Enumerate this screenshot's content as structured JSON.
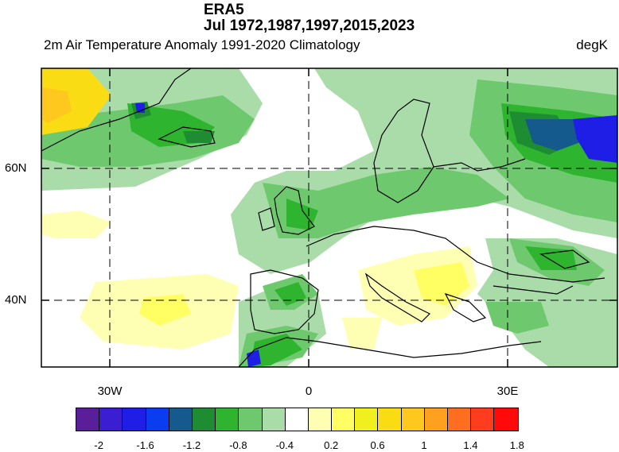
{
  "header": {
    "title": "ERA5",
    "subtitle_dates": "Jul 1972,1987,1997,2015,2023",
    "variable": "2m Air Temperature Anomaly  1991-2020 Climatology",
    "units": "degK"
  },
  "map": {
    "lat_labels": [
      "60N",
      "40N"
    ],
    "lon_labels": [
      "30W",
      "0",
      "30E"
    ]
  },
  "colorbar": {
    "colors": [
      "#5a1e9b",
      "#3c1ed2",
      "#1e1ee6",
      "#0a3cf0",
      "#145a8c",
      "#1e8c32",
      "#2eb42e",
      "#6ec86e",
      "#aadcaa",
      "#ffffff",
      "#ffffb4",
      "#ffff64",
      "#f0f01e",
      "#fadc14",
      "#ffc81e",
      "#ffa01e",
      "#ff6e1e",
      "#ff3c1e",
      "#ff0a0a"
    ],
    "labels": [
      "-2",
      "-1.6",
      "-1.2",
      "-0.8",
      "-0.4",
      "0.2",
      "0.6",
      "1",
      "1.4",
      "1.8"
    ]
  }
}
